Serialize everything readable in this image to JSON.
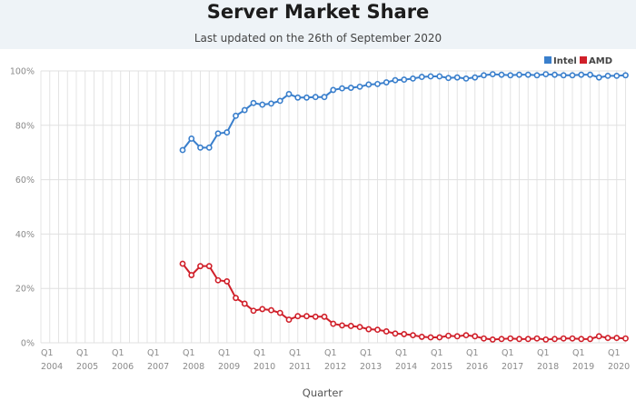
{
  "chart_data": {
    "type": "line",
    "title": "Server Market Share",
    "subtitle": "Last updated on the 26th of September 2020",
    "xlabel": "Quarter",
    "ylabel": "",
    "ylim": [
      0,
      100
    ],
    "yticks": [
      "0%",
      "20%",
      "40%",
      "60%",
      "80%",
      "100%"
    ],
    "ytick_values": [
      0,
      20,
      40,
      60,
      80,
      100
    ],
    "xtick_labels": [
      {
        "q": "Q1",
        "year": "2004"
      },
      {
        "q": "Q1",
        "year": "2005"
      },
      {
        "q": "Q1",
        "year": "2006"
      },
      {
        "q": "Q1",
        "year": "2007"
      },
      {
        "q": "Q1",
        "year": "2008"
      },
      {
        "q": "Q1",
        "year": "2009"
      },
      {
        "q": "Q1",
        "year": "2010"
      },
      {
        "q": "Q1",
        "year": "2011"
      },
      {
        "q": "Q1",
        "year": "2012"
      },
      {
        "q": "Q1",
        "year": "2013"
      },
      {
        "q": "Q1",
        "year": "2014"
      },
      {
        "q": "Q1",
        "year": "2015"
      },
      {
        "q": "Q1",
        "year": "2016"
      },
      {
        "q": "Q1",
        "year": "2017"
      },
      {
        "q": "Q1",
        "year": "2018"
      },
      {
        "q": "Q1",
        "year": "2019"
      },
      {
        "q": "Q1",
        "year": "2020"
      }
    ],
    "x_start": "Q1 2004",
    "total_quarters": 67,
    "series_start_index": 16,
    "grid": true,
    "legend": "top-right",
    "series": [
      {
        "name": "Intel",
        "color": "#3a7fcc",
        "values": [
          70.9,
          75.1,
          71.8,
          71.8,
          77.0,
          77.4,
          83.5,
          85.6,
          88.2,
          87.6,
          88.0,
          89.0,
          91.5,
          90.2,
          90.2,
          90.4,
          90.4,
          93.0,
          93.6,
          93.8,
          94.2,
          95.0,
          95.2,
          95.8,
          96.6,
          96.8,
          97.2,
          97.8,
          98.0,
          98.0,
          97.4,
          97.6,
          97.2,
          97.6,
          98.4,
          98.8,
          98.6,
          98.4,
          98.6,
          98.6,
          98.4,
          98.8,
          98.6,
          98.4,
          98.4,
          98.6,
          98.6,
          97.6,
          98.2,
          98.2,
          98.4
        ]
      },
      {
        "name": "AMD",
        "color": "#d0202a",
        "values": [
          29.1,
          24.9,
          28.2,
          28.2,
          23.0,
          22.6,
          16.5,
          14.4,
          11.8,
          12.4,
          12.0,
          11.0,
          8.5,
          9.8,
          9.8,
          9.6,
          9.6,
          7.0,
          6.4,
          6.2,
          5.8,
          5.0,
          4.8,
          4.2,
          3.4,
          3.2,
          2.8,
          2.2,
          2.0,
          2.0,
          2.6,
          2.4,
          2.8,
          2.4,
          1.6,
          1.2,
          1.4,
          1.6,
          1.4,
          1.4,
          1.6,
          1.2,
          1.4,
          1.6,
          1.6,
          1.4,
          1.4,
          2.4,
          1.8,
          1.8,
          1.6
        ]
      }
    ]
  }
}
